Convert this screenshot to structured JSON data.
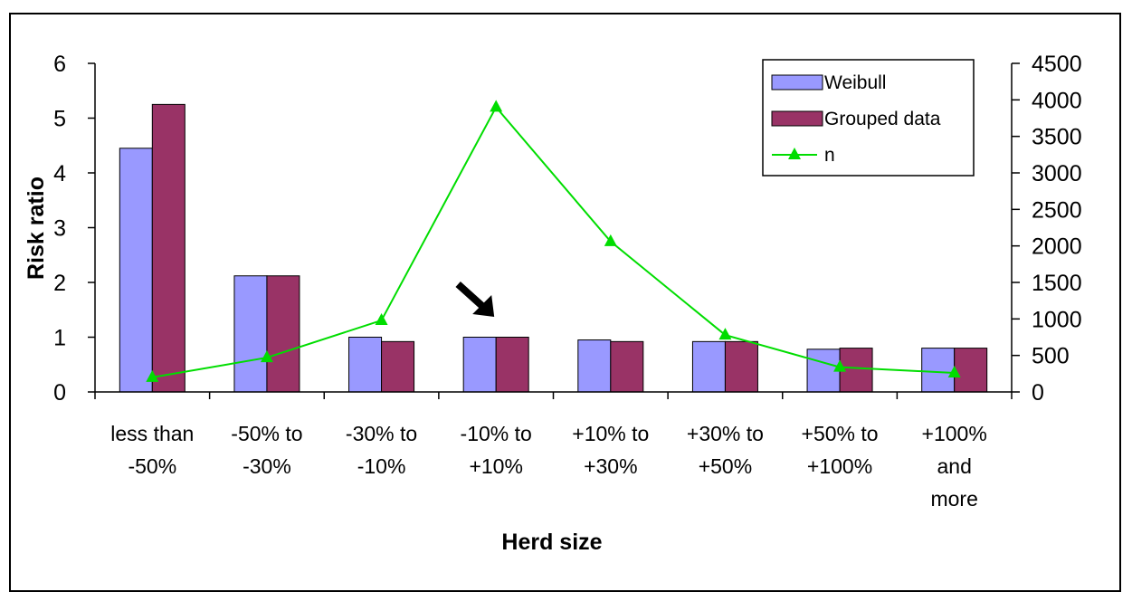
{
  "chart_data": {
    "type": "bar",
    "categories": [
      [
        "less than",
        "-50%"
      ],
      [
        "-50% to",
        "-30%"
      ],
      [
        "-30% to",
        "-10%"
      ],
      [
        "-10% to",
        "+10%"
      ],
      [
        "+10% to",
        "+30%"
      ],
      [
        "+30% to",
        "+50%"
      ],
      [
        "+50% to",
        "+100%"
      ],
      [
        "+100%",
        "and",
        "more"
      ]
    ],
    "series": [
      {
        "name": "Weibull",
        "kind": "bar",
        "axis": "left",
        "color": "#9999ff",
        "values": [
          4.45,
          2.12,
          1.0,
          1.0,
          0.95,
          0.92,
          0.78,
          0.8
        ]
      },
      {
        "name": "Grouped data",
        "kind": "bar",
        "axis": "left",
        "color": "#993366",
        "values": [
          5.25,
          2.12,
          0.92,
          1.0,
          0.92,
          0.92,
          0.8,
          0.8
        ]
      },
      {
        "name": "n",
        "kind": "line",
        "axis": "right",
        "color": "#00dd00",
        "marker": "triangle",
        "values": [
          200,
          470,
          980,
          3900,
          2060,
          780,
          340,
          260
        ]
      }
    ],
    "xlabel": "Herd size",
    "ylabel": "Risk ratio",
    "ylim": [
      0,
      6
    ],
    "yticks": [
      0,
      1,
      2,
      3,
      4,
      5,
      6
    ],
    "y2lim": [
      0,
      4500
    ],
    "y2ticks": [
      0,
      500,
      1000,
      1500,
      2000,
      2500,
      3000,
      3500,
      4000,
      4500
    ],
    "legend_position": "top-right",
    "grid": false,
    "annotations": [
      {
        "type": "arrow",
        "points_to_category": 3,
        "direction": "down-right"
      }
    ]
  }
}
